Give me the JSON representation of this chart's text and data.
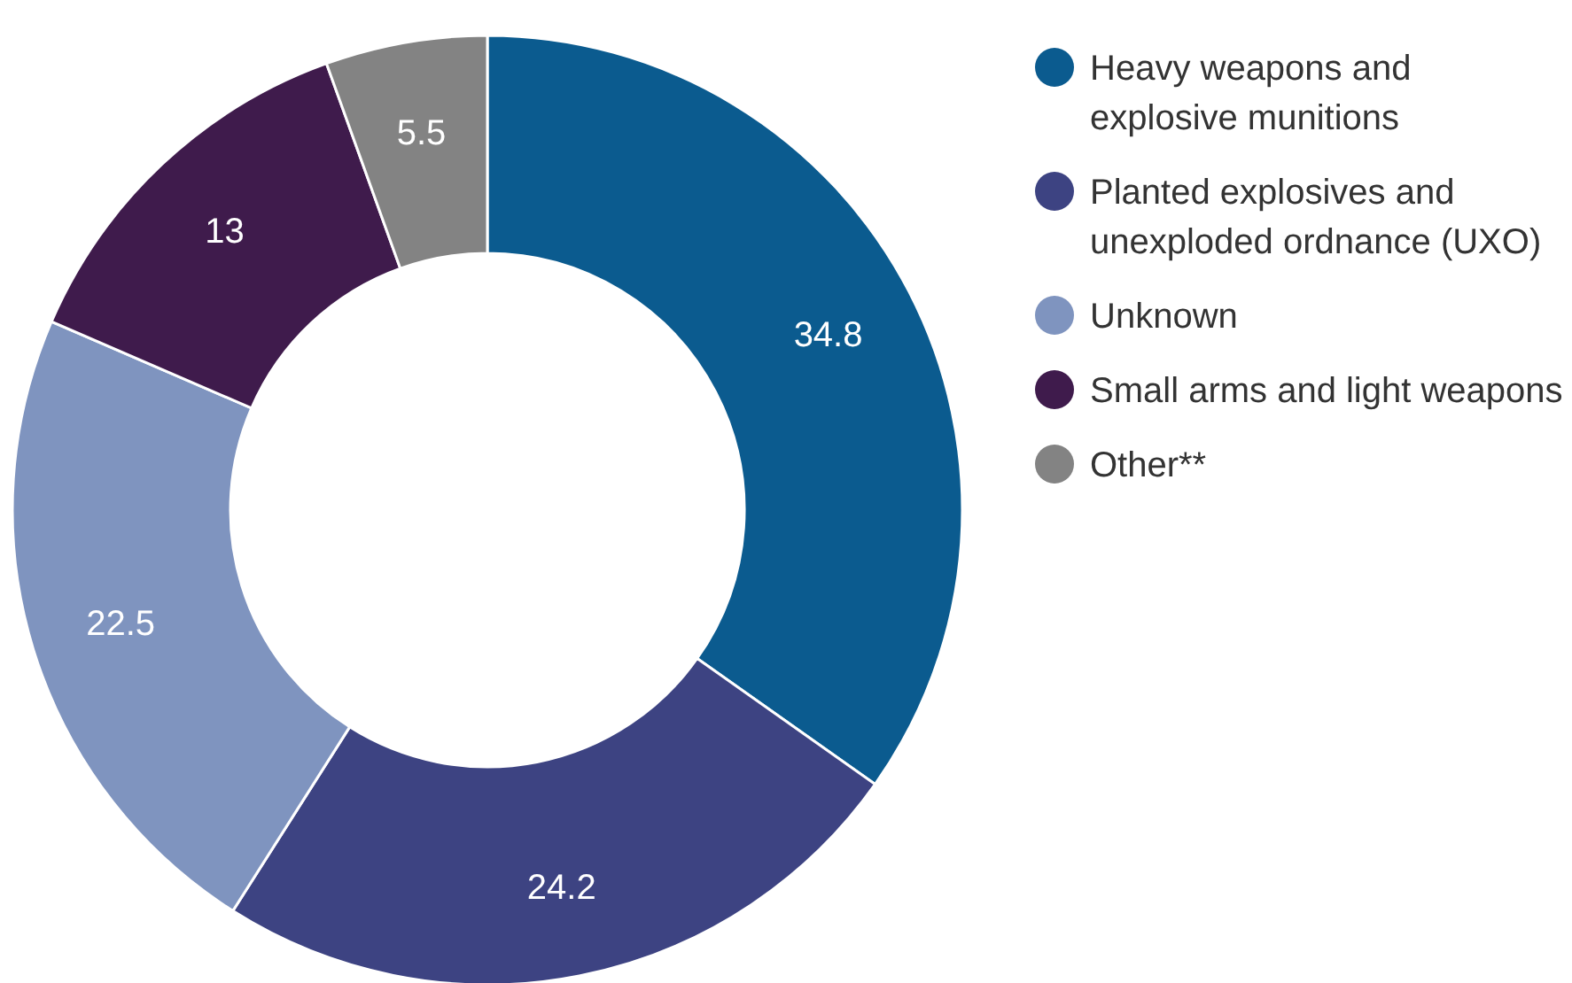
{
  "chart_data": {
    "type": "donut",
    "categories": [
      "Heavy weapons and explosive munitions",
      "Planted explosives and unexploded ordnance (UXO)",
      "Unknown",
      "Small arms and light weapons",
      "Other**"
    ],
    "values": [
      34.8,
      24.2,
      22.5,
      13,
      5.5
    ],
    "colors": [
      "#0b5b8f",
      "#3d4382",
      "#7f94bf",
      "#3f1b4c",
      "#838383"
    ],
    "data_labels": true,
    "legend": "top right"
  }
}
